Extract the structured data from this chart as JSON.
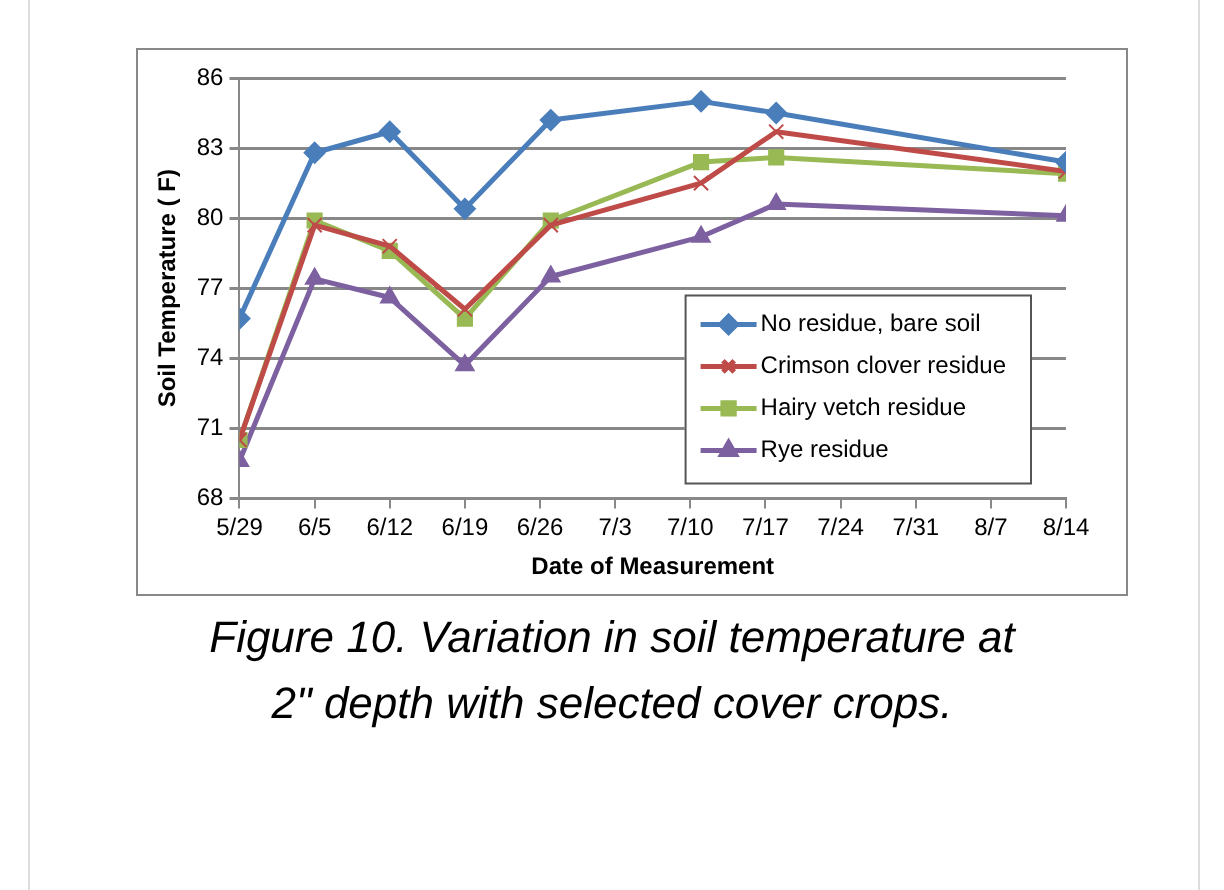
{
  "chart_data": {
    "type": "line",
    "xlabel": "Date of Measurement",
    "ylabel": "Soil Temperature ( F)",
    "annotations": [
      "Figure 10. Variation in soil temperature at 2\" depth with selected cover crops."
    ],
    "x": [
      "--05-29",
      "--06-05",
      "--06-12",
      "--06-19",
      "--06-27",
      "--07-11",
      "--07-18",
      "--08-14"
    ],
    "xlim": [
      "--05-29",
      "--08-14"
    ],
    "xticks": [
      {
        "value": "--05-29",
        "label": "5/29"
      },
      {
        "value": "--06-05",
        "label": "6/5"
      },
      {
        "value": "--06-12",
        "label": "6/12"
      },
      {
        "value": "--06-19",
        "label": "6/19"
      },
      {
        "value": "--06-26",
        "label": "6/26"
      },
      {
        "value": "--07-03",
        "label": "7/3"
      },
      {
        "value": "--07-10",
        "label": "7/10"
      },
      {
        "value": "--07-17",
        "label": "7/17"
      },
      {
        "value": "--07-24",
        "label": "7/24"
      },
      {
        "value": "--07-31",
        "label": "7/31"
      },
      {
        "value": "--08-07",
        "label": "8/7"
      },
      {
        "value": "--08-14",
        "label": "8/14"
      }
    ],
    "ylim": [
      68,
      86
    ],
    "yticks": [
      68,
      71,
      74,
      77,
      80,
      83,
      86
    ],
    "grid": "y",
    "legend": "bottom right",
    "series": [
      {
        "name": "No residue, bare soil",
        "color": "#4a7ebb",
        "marker": "diamond",
        "values": [
          75.7,
          82.8,
          83.7,
          80.4,
          84.2,
          85.0,
          84.5,
          82.4
        ]
      },
      {
        "name": "Crimson clover residue",
        "color": "#be4b48",
        "marker": "cross",
        "values": [
          70.5,
          79.7,
          78.8,
          76.1,
          79.7,
          81.5,
          83.7,
          82.0
        ]
      },
      {
        "name": "Hairy vetch residue",
        "color": "#98b954",
        "marker": "square",
        "values": [
          70.5,
          79.9,
          78.6,
          75.7,
          79.9,
          82.4,
          82.6,
          81.9
        ]
      },
      {
        "name": "Rye residue",
        "color": "#7d60a0",
        "marker": "triangle",
        "values": [
          69.6,
          77.4,
          76.6,
          73.7,
          77.5,
          79.2,
          80.6,
          80.1
        ]
      }
    ]
  }
}
